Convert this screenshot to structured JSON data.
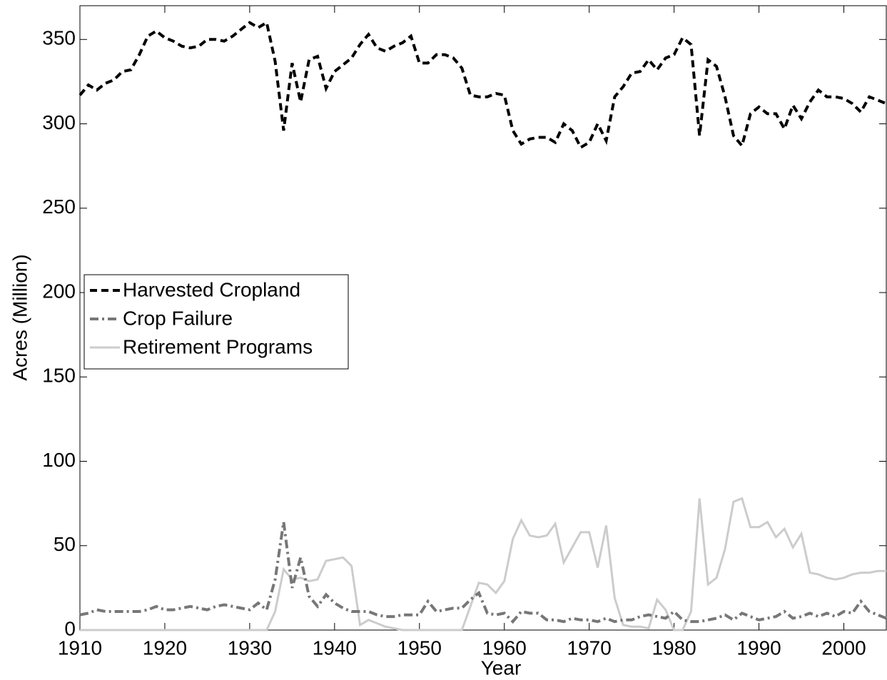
{
  "chart_data": {
    "type": "line",
    "xlabel": "Year",
    "ylabel": "Acres (Million)",
    "x": [
      1910,
      1911,
      1912,
      1913,
      1914,
      1915,
      1916,
      1917,
      1918,
      1919,
      1920,
      1921,
      1922,
      1923,
      1924,
      1925,
      1926,
      1927,
      1928,
      1929,
      1930,
      1931,
      1932,
      1933,
      1934,
      1935,
      1936,
      1937,
      1938,
      1939,
      1940,
      1941,
      1942,
      1943,
      1944,
      1945,
      1946,
      1947,
      1948,
      1949,
      1950,
      1951,
      1952,
      1953,
      1954,
      1955,
      1956,
      1957,
      1958,
      1959,
      1960,
      1961,
      1962,
      1963,
      1964,
      1965,
      1966,
      1967,
      1968,
      1969,
      1970,
      1971,
      1972,
      1973,
      1974,
      1975,
      1976,
      1977,
      1978,
      1979,
      1980,
      1981,
      1982,
      1983,
      1984,
      1985,
      1986,
      1987,
      1988,
      1989,
      1990,
      1991,
      1992,
      1993,
      1994,
      1995,
      1996,
      1997,
      1998,
      1999,
      2000,
      2001,
      2002,
      2003,
      2004,
      2005
    ],
    "series": [
      {
        "name": "Harvested Cropland",
        "color": "#000000",
        "linestyle": "dashed",
        "values": [
          317,
          323,
          320,
          324,
          326,
          331,
          332,
          341,
          352,
          355,
          351,
          349,
          346,
          345,
          346,
          350,
          350,
          349,
          352,
          356,
          360,
          357,
          360,
          337,
          296,
          336,
          313,
          338,
          340,
          321,
          331,
          335,
          339,
          347,
          353,
          345,
          343,
          346,
          348,
          352,
          336,
          336,
          341,
          341,
          339,
          333,
          317,
          316,
          316,
          318,
          317,
          296,
          288,
          291,
          292,
          292,
          289,
          300,
          296,
          286,
          289,
          300,
          290,
          316,
          322,
          330,
          331,
          338,
          332,
          339,
          341,
          351,
          347,
          293,
          338,
          334,
          316,
          293,
          287,
          306,
          310,
          306,
          306,
          297,
          311,
          303,
          313,
          320,
          316,
          316,
          315,
          312,
          307,
          316,
          314,
          312
        ]
      },
      {
        "name": "Crop Failure",
        "color": "#777777",
        "linestyle": "dashdot",
        "values": [
          9,
          10,
          12,
          11,
          11,
          11,
          11,
          11,
          12,
          14,
          12,
          12,
          13,
          14,
          13,
          12,
          14,
          15,
          14,
          13,
          12,
          16,
          12,
          30,
          64,
          25,
          43,
          20,
          14,
          21,
          16,
          13,
          11,
          11,
          11,
          9,
          8,
          8,
          9,
          9,
          9,
          17,
          11,
          12,
          13,
          13,
          18,
          22,
          10,
          9,
          10,
          5,
          11,
          10,
          10,
          6,
          6,
          5,
          7,
          6,
          6,
          5,
          7,
          5,
          6,
          6,
          8,
          9,
          8,
          7,
          11,
          6,
          5,
          5,
          6,
          7,
          9,
          6,
          10,
          8,
          6,
          7,
          8,
          11,
          7,
          8,
          10,
          8,
          10,
          8,
          11,
          10,
          17,
          11,
          9,
          7
        ]
      },
      {
        "name": "Retirement Programs",
        "color": "#cccccc",
        "linestyle": "solid",
        "values": [
          0,
          0,
          0,
          0,
          0,
          0,
          0,
          0,
          0,
          0,
          0,
          0,
          0,
          0,
          0,
          0,
          0,
          0,
          0,
          0,
          0,
          0,
          0,
          11,
          36,
          30,
          31,
          29,
          30,
          41,
          42,
          43,
          38,
          3,
          6,
          4,
          2,
          1,
          0,
          0,
          0,
          0,
          0,
          0,
          0,
          0,
          14,
          28,
          27,
          22,
          29,
          54,
          65,
          56,
          55,
          56,
          63,
          40,
          49,
          58,
          58,
          37,
          62,
          19,
          3,
          2,
          2,
          1,
          18,
          12,
          0,
          0,
          11,
          78,
          27,
          31,
          48,
          76,
          78,
          61,
          61,
          64,
          55,
          60,
          49,
          57,
          34,
          33,
          31,
          30,
          31,
          33,
          34,
          34,
          35,
          35
        ]
      }
    ],
    "xlim": [
      1910,
      2005
    ],
    "xticks": [
      1910,
      1920,
      1930,
      1940,
      1950,
      1960,
      1970,
      1980,
      1990,
      2000
    ],
    "ylim": [
      0,
      370
    ],
    "yticks": [
      0,
      50,
      100,
      150,
      200,
      250,
      300,
      350
    ],
    "legend": "center left",
    "grid": false
  }
}
